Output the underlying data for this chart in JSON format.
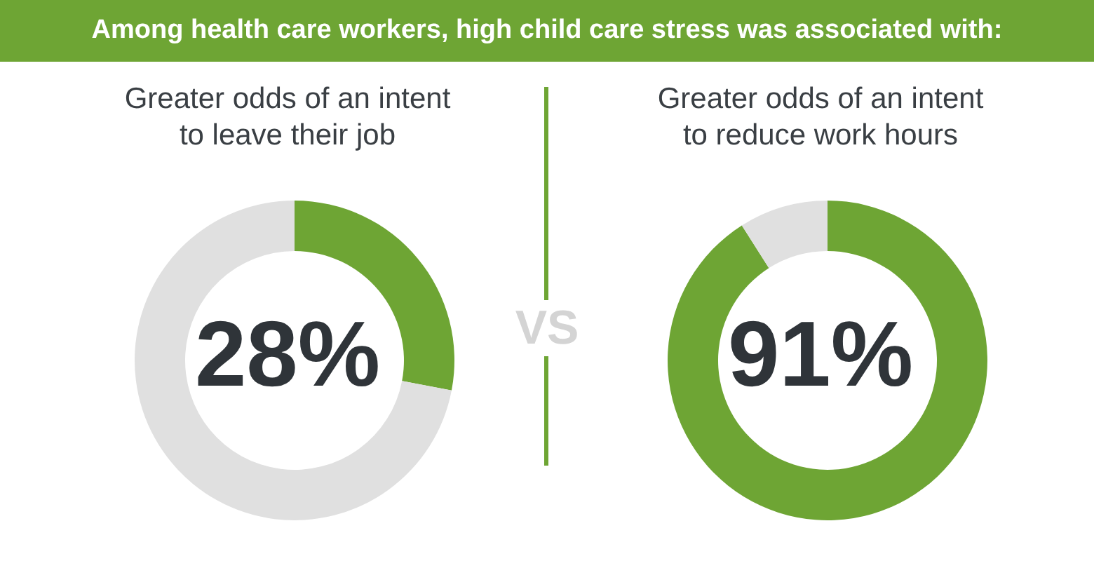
{
  "chart_data": [
    {
      "type": "donut",
      "title": "Among health care workers, high child care stress was associated with:",
      "subtitle": "Greater odds of an intent to leave their job",
      "categories": [
        null,
        null
      ],
      "values": [
        28,
        72
      ],
      "colors": [
        "#6ea534",
        "#e0e0e0"
      ],
      "annotations": [
        "28%",
        "VS"
      ]
    },
    {
      "type": "donut",
      "subtitle": "Greater odds of an intent to reduce work hours",
      "categories": [
        null,
        null
      ],
      "values": [
        91,
        9
      ],
      "colors": [
        "#6ea534",
        "#e0e0e0"
      ],
      "annotations": [
        "91%"
      ]
    }
  ]
}
